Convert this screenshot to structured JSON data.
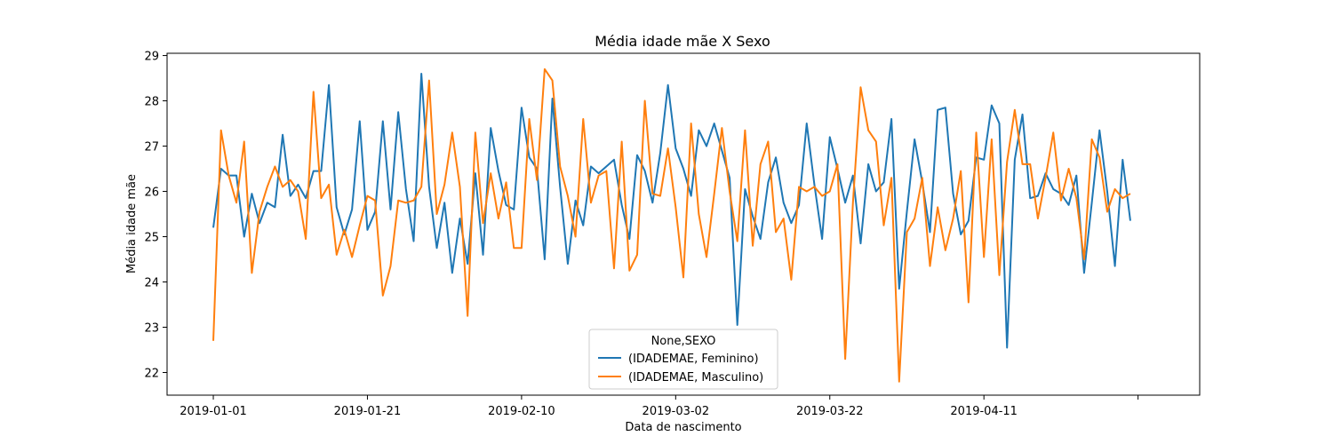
{
  "chart_data": {
    "type": "line",
    "title": "Média idade mãe X Sexo",
    "xlabel": "Data de nascimento",
    "ylabel": "Média idade mãe",
    "start_date": "2019-01-01",
    "x_ticks": [
      "2019-01-01",
      "2019-01-21",
      "2019-02-10",
      "2019-03-02",
      "2019-03-22",
      "2019-04-11"
    ],
    "xlim": [
      "2018-12-26",
      "2019-05-09"
    ],
    "ylim": [
      21.5,
      29.05
    ],
    "y_ticks": [
      22,
      23,
      24,
      25,
      26,
      27,
      28,
      29
    ],
    "grid": false,
    "legend": {
      "title": "None,SEXO",
      "placement": "lower center"
    },
    "series": [
      {
        "name": "(IDADEMAE, Feminino)",
        "color": "#1f77b4",
        "values": [
          25.2,
          26.5,
          26.35,
          26.35,
          25.0,
          25.95,
          25.3,
          25.75,
          25.65,
          27.25,
          25.9,
          26.15,
          25.85,
          26.45,
          26.45,
          28.35,
          25.65,
          25.05,
          25.6,
          27.55,
          25.15,
          25.55,
          27.55,
          25.6,
          27.75,
          26.05,
          24.9,
          28.6,
          26.1,
          24.75,
          25.75,
          24.2,
          25.4,
          24.4,
          26.4,
          24.6,
          27.4,
          26.45,
          25.7,
          25.6,
          27.85,
          26.75,
          26.5,
          24.5,
          28.05,
          26.1,
          24.4,
          25.8,
          25.25,
          26.55,
          26.4,
          26.55,
          26.7,
          25.7,
          24.95,
          26.8,
          26.45,
          25.75,
          26.85,
          28.35,
          26.95,
          26.5,
          25.9,
          27.35,
          27.0,
          27.5,
          26.9,
          26.3,
          23.05,
          26.05,
          25.45,
          24.95,
          26.2,
          26.75,
          25.75,
          25.3,
          25.7,
          27.5,
          26.15,
          24.95,
          27.2,
          26.5,
          25.75,
          26.35,
          24.85,
          26.6,
          26.0,
          26.2,
          27.6,
          23.85,
          25.55,
          27.15,
          26.2,
          25.1,
          27.8,
          27.85,
          25.95,
          25.05,
          25.35,
          26.75,
          26.7,
          27.9,
          27.5,
          22.55,
          26.7,
          27.7,
          25.85,
          25.9,
          26.4,
          26.05,
          25.95,
          25.7,
          26.35,
          24.2,
          25.75,
          27.35,
          26.0,
          24.35,
          26.7,
          25.35
        ]
      },
      {
        "name": "(IDADEMAE, Masculino)",
        "color": "#ff7f0e",
        "values": [
          22.7,
          27.35,
          26.35,
          25.75,
          27.1,
          24.2,
          25.55,
          26.1,
          26.55,
          26.1,
          26.25,
          26.0,
          24.95,
          28.2,
          25.85,
          26.15,
          24.6,
          25.15,
          24.55,
          25.25,
          25.9,
          25.8,
          23.7,
          24.35,
          25.8,
          25.75,
          25.8,
          26.1,
          28.45,
          25.5,
          26.15,
          27.3,
          26.1,
          23.25,
          27.3,
          25.3,
          26.4,
          25.4,
          26.2,
          24.75,
          24.75,
          27.6,
          26.25,
          28.7,
          28.45,
          26.55,
          25.9,
          25.0,
          27.6,
          25.75,
          26.35,
          26.45,
          24.3,
          27.1,
          24.25,
          24.6,
          28.0,
          25.95,
          25.9,
          26.95,
          25.65,
          24.1,
          27.5,
          25.5,
          24.55,
          25.95,
          27.4,
          26.0,
          24.9,
          27.35,
          24.8,
          26.6,
          27.1,
          25.1,
          25.4,
          24.05,
          26.1,
          26.0,
          26.1,
          25.9,
          26.0,
          26.6,
          22.3,
          25.75,
          28.3,
          27.35,
          27.1,
          25.25,
          26.3,
          21.8,
          25.1,
          25.4,
          26.3,
          24.35,
          25.65,
          24.7,
          25.4,
          26.45,
          23.55,
          27.3,
          24.55,
          27.15,
          24.15,
          26.65,
          27.8,
          26.6,
          26.6,
          25.4,
          26.3,
          27.3,
          25.8,
          26.5,
          25.85,
          24.5,
          27.15,
          26.75,
          25.55,
          26.05,
          25.85,
          25.95
        ]
      }
    ]
  }
}
